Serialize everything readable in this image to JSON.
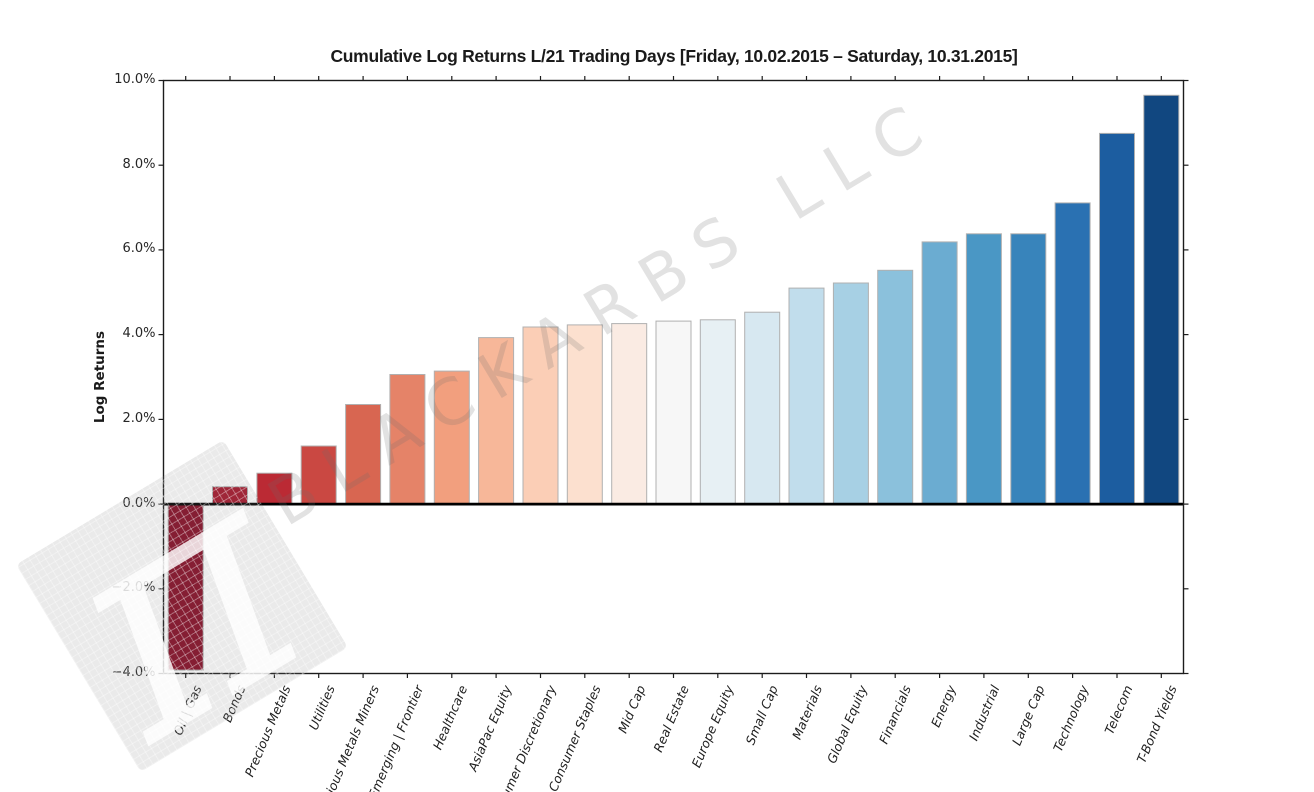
{
  "watermark": {
    "text": "BLACKARBS LLC",
    "pi_symbol": "π"
  },
  "chart_data": {
    "type": "bar",
    "title": "Cumulative Log Returns L/21 Trading Days  [Friday, 10.02.2015 – Saturday, 10.31.2015]",
    "xlabel": "",
    "ylabel": "Log Returns",
    "ylim": [
      -4.0,
      10.0
    ],
    "grid": false,
    "legend": "none",
    "yticks": {
      "values": [
        10,
        8,
        6,
        4,
        2,
        0,
        -2,
        -4
      ],
      "labels": [
        "10.0%",
        "8.0%",
        "6.0%",
        "4.0%",
        "2.0%",
        "0.0%",
        "−2.0%",
        "−4.0%"
      ]
    },
    "categories": [
      "Oil | Gas",
      "Bonds",
      "Precious Metals",
      "Utilities",
      "Precious Metals Miners",
      "Emerging | Frontier",
      "Healthcare",
      "AsiaPac Equity",
      "Consumer Discretionary",
      "Consumer Staples",
      "Mid Cap",
      "Real Estate",
      "Europe Equity",
      "Small Cap",
      "Materials",
      "Global Equity",
      "Financials",
      "Energy",
      "Industrial",
      "Large Cap",
      "Technology",
      "Telecom",
      "T-Bond Yields"
    ],
    "values": [
      -3.92,
      0.41,
      0.73,
      1.37,
      2.35,
      3.06,
      3.14,
      3.93,
      4.18,
      4.23,
      4.26,
      4.32,
      4.35,
      4.53,
      5.1,
      5.22,
      5.52,
      6.19,
      6.38,
      6.38,
      7.11,
      8.75,
      9.65
    ],
    "unit": "%",
    "bar_colors": [
      "#860a24",
      "#a51429",
      "#bb2a34",
      "#ca4842",
      "#d86651",
      "#e58368",
      "#f29f7e",
      "#f7b799",
      "#fbceb6",
      "#fce0cf",
      "#faebe3",
      "#f7f7f7",
      "#e7f0f4",
      "#d7e8f1",
      "#c1ddec",
      "#a7d0e4",
      "#8bc1dc",
      "#6bacd1",
      "#4a97c5",
      "#3884bb",
      "#2a71b2",
      "#1c5da0",
      "#114780"
    ],
    "bar_edge_color": "#b0b0b0",
    "axis_color": "#1c1c1c",
    "zero_line_color": "#000000"
  }
}
